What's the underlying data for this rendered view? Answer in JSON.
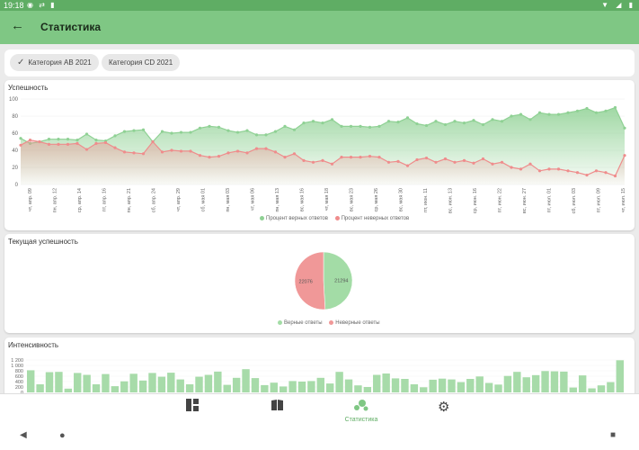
{
  "status_bar": {
    "time": "19:18"
  },
  "app_bar": {
    "title": "Статистика"
  },
  "chips": [
    {
      "label": "Категория АВ 2021",
      "selected": true
    },
    {
      "label": "Категория CD 2021",
      "selected": false
    }
  ],
  "success_card": {
    "title": "Успешность",
    "chart_data": {
      "type": "area",
      "ylim": [
        0,
        100
      ],
      "yticks": [
        0,
        20,
        40,
        60,
        80,
        100
      ],
      "x_tick_labels": [
        "чт, апр. 09",
        "пн, апр. 12",
        "ср, апр. 14",
        "пт, апр. 16",
        "пн, апр. 21",
        "сб, апр. 24",
        "чт, апр. 29",
        "сб, мая 01",
        "пн, мая 03",
        "чт, мая 06",
        "пн, мая 13",
        "вс, мая 16",
        "чт, мая 18",
        "вс, мая 23",
        "ср, мая 26",
        "вс, мая 30",
        "пт, июн. 11",
        "вс, июн. 13",
        "ср, июн. 16",
        "пт, июн. 22",
        "вс, июн. 27",
        "пт, июл. 01",
        "сб, июл. 03",
        "пт, июл. 09",
        "чт, июл. 15"
      ],
      "series": [
        {
          "name": "Процент верных ответов",
          "color": "#8fd194",
          "values": [
            54,
            48,
            50,
            53,
            53,
            53,
            52,
            59,
            52,
            51,
            57,
            62,
            63,
            64,
            50,
            62,
            60,
            61,
            61,
            66,
            68,
            67,
            63,
            61,
            63,
            58,
            58,
            62,
            68,
            64,
            72,
            74,
            72,
            76,
            68,
            68,
            68,
            67,
            68,
            74,
            73,
            78,
            71,
            69,
            74,
            70,
            74,
            72,
            75,
            70,
            76,
            74,
            80,
            82,
            76,
            84,
            82,
            82,
            84,
            86,
            89,
            84,
            86,
            90,
            66
          ]
        },
        {
          "name": "Процент неверных ответов",
          "color": "#ef8c8c",
          "values": [
            46,
            52,
            50,
            47,
            47,
            47,
            48,
            41,
            48,
            49,
            43,
            38,
            37,
            36,
            50,
            38,
            40,
            39,
            39,
            34,
            32,
            33,
            37,
            39,
            37,
            42,
            42,
            38,
            32,
            36,
            28,
            26,
            28,
            24,
            32,
            32,
            32,
            33,
            32,
            26,
            27,
            22,
            29,
            31,
            26,
            30,
            26,
            28,
            25,
            30,
            24,
            26,
            20,
            18,
            24,
            16,
            18,
            18,
            16,
            14,
            11,
            16,
            14,
            10,
            34
          ]
        }
      ]
    }
  },
  "current_card": {
    "title": "Текущая успешность",
    "chart_data": {
      "type": "pie",
      "slices": [
        {
          "name": "Верные ответы",
          "value": 21294,
          "color": "#a3dca6"
        },
        {
          "name": "Неверные ответы",
          "value": 22076,
          "color": "#f09898"
        }
      ]
    }
  },
  "intensity_card": {
    "title": "Интенсивность",
    "chart_data": {
      "type": "bar",
      "yticks": [
        0,
        200,
        400,
        600,
        800,
        1000,
        1200
      ],
      "ytick_labels": [
        "0",
        "200",
        "400",
        "600",
        "800",
        "1 000",
        "1 200"
      ],
      "color": "#a7dba9",
      "values": [
        820,
        300,
        750,
        760,
        140,
        720,
        650,
        300,
        680,
        230,
        410,
        690,
        440,
        720,
        580,
        730,
        480,
        300,
        580,
        650,
        770,
        280,
        540,
        860,
        530,
        270,
        360,
        220,
        420,
        400,
        420,
        540,
        330,
        760,
        480,
        260,
        200,
        650,
        700,
        520,
        500,
        300,
        190,
        470,
        510,
        480,
        380,
        500,
        590,
        350,
        290,
        610,
        760,
        560,
        640,
        790,
        780,
        770,
        180,
        630,
        150,
        260,
        380,
        1190
      ]
    }
  },
  "bottom_nav": {
    "items": [
      {
        "icon": "dashboard-icon",
        "label": ""
      },
      {
        "icon": "book-icon",
        "label": ""
      },
      {
        "icon": "statistics-icon",
        "label": "Статистика"
      },
      {
        "icon": "gear-icon",
        "label": ""
      }
    ]
  }
}
